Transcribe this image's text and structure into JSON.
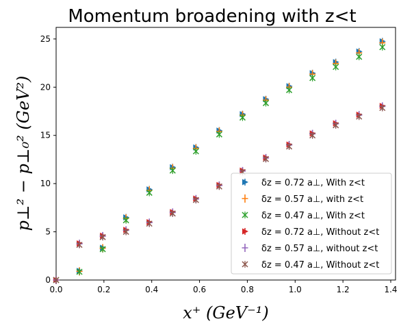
{
  "chart_data": {
    "type": "scatter",
    "title": "Momentum broadening with z<t",
    "xlabel": "x⁺  (GeV⁻¹)",
    "ylabel": "p⊥² − p⊥₀²  (GeV²)",
    "xlim": [
      0.0,
      1.42
    ],
    "ylim": [
      0,
      26.2
    ],
    "xticks": [
      "0.0",
      "0.2",
      "0.4",
      "0.6",
      "0.8",
      "1.0",
      "1.2",
      "1.4"
    ],
    "yticks": [
      "0",
      "5",
      "10",
      "15",
      "20",
      "25"
    ],
    "grid": false,
    "legend_position": "lower-right",
    "x": [
      0.0,
      0.0975,
      0.195,
      0.2925,
      0.39,
      0.4875,
      0.585,
      0.6825,
      0.78,
      0.8775,
      0.975,
      1.0725,
      1.17,
      1.2675,
      1.365
    ],
    "series": [
      {
        "name": "δz = 0.72 a⊥, With z<t",
        "color": "#1f77b4",
        "marker": "triangle-right",
        "values": [
          0,
          0.95,
          3.35,
          6.5,
          9.4,
          11.7,
          13.75,
          15.5,
          17.2,
          18.75,
          20.1,
          21.45,
          22.6,
          23.7,
          24.75
        ]
      },
      {
        "name": "δz = 0.57 a⊥, with z<t",
        "color": "#ff7f0e",
        "marker": "plus",
        "values": [
          0,
          0.9,
          3.3,
          6.4,
          9.3,
          11.6,
          13.65,
          15.4,
          17.1,
          18.65,
          20.0,
          21.35,
          22.45,
          23.55,
          24.6
        ]
      },
      {
        "name": "δz = 0.47 a⊥, With z<t",
        "color": "#2ca02c",
        "marker": "x",
        "values": [
          0,
          0.85,
          3.2,
          6.2,
          9.05,
          11.35,
          13.35,
          15.1,
          16.85,
          18.35,
          19.7,
          20.95,
          22.1,
          23.15,
          24.15
        ]
      },
      {
        "name": "δz = 0.72 a⊥, Without z<t",
        "color": "#d62728",
        "marker": "triangle-right",
        "values": [
          0,
          3.8,
          4.6,
          5.2,
          6.0,
          7.05,
          8.45,
          9.85,
          11.35,
          12.7,
          14.05,
          15.2,
          16.25,
          17.15,
          18.05
        ]
      },
      {
        "name": "δz = 0.57 a⊥, without z<t",
        "color": "#9467bd",
        "marker": "plus",
        "values": [
          0,
          3.75,
          4.55,
          5.15,
          5.95,
          7.0,
          8.4,
          9.8,
          11.3,
          12.65,
          14.0,
          15.15,
          16.2,
          17.1,
          18.0
        ]
      },
      {
        "name": "δz = 0.47 a⊥, Without z<t",
        "color": "#8c564b",
        "marker": "x",
        "values": [
          0,
          3.65,
          4.45,
          5.0,
          5.85,
          6.9,
          8.3,
          9.7,
          11.2,
          12.55,
          13.85,
          15.0,
          16.05,
          16.95,
          17.85
        ]
      }
    ]
  }
}
